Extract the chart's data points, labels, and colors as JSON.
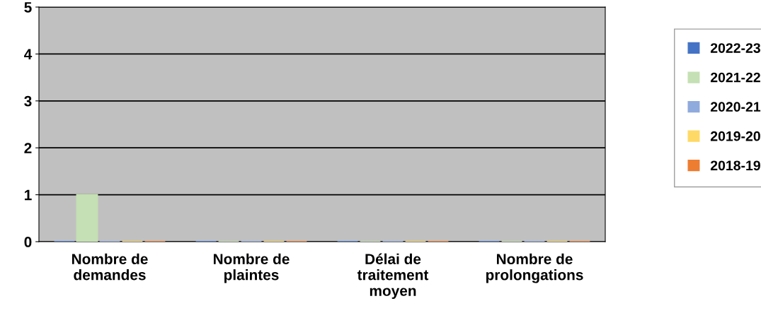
{
  "chart_data": {
    "type": "bar",
    "categories": [
      "Nombre de\ndemandes",
      "Nombre de\nplaintes",
      "Délai de\ntraitement\nmoyen",
      "Nombre de\nprolongations"
    ],
    "series": [
      {
        "name": "2022-23",
        "color": "#4472c4",
        "values": [
          0,
          0,
          0,
          0
        ]
      },
      {
        "name": "2021-22",
        "color": "#c5e0b4",
        "values": [
          1,
          0,
          0,
          0
        ]
      },
      {
        "name": "2020-21",
        "color": "#8faadc",
        "values": [
          0,
          0,
          0,
          0
        ]
      },
      {
        "name": "2019-20",
        "color": "#ffd966",
        "values": [
          0,
          0,
          0,
          0
        ]
      },
      {
        "name": "2018-19",
        "color": "#ed7d31",
        "values": [
          0,
          0,
          0,
          0
        ]
      }
    ],
    "ylim": [
      0,
      5
    ],
    "yticks": [
      0,
      1,
      2,
      3,
      4,
      5
    ],
    "grid": "y",
    "legend": "right"
  }
}
